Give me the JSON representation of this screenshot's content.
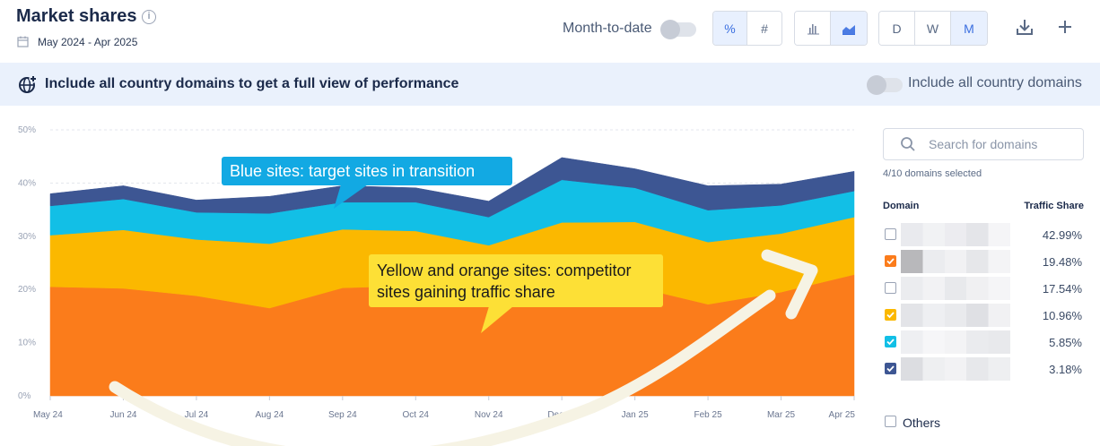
{
  "header": {
    "title": "Market shares",
    "date_range": "May 2024 - Apr 2025",
    "month_to_date_label": "Month-to-date",
    "unit_buttons": [
      "%",
      "#"
    ],
    "active_unit": "%",
    "chart_type_buttons": [
      "bar-chart-icon",
      "area-chart-icon"
    ],
    "active_chart_type": "area-chart-icon",
    "granularity_buttons": [
      "D",
      "W",
      "M"
    ],
    "active_granularity": "M"
  },
  "banner": {
    "text": "Include all country domains to get a full view of performance",
    "toggle_label": "Include all country domains"
  },
  "search": {
    "placeholder": "Search for domains"
  },
  "selection": {
    "count_text": "4/10 domains selected"
  },
  "table": {
    "headers": {
      "domain": "Domain",
      "share": "Traffic Share"
    },
    "rows": [
      {
        "checked": false,
        "color": "",
        "share": "42.99%"
      },
      {
        "checked": true,
        "color": "#fb7c1b",
        "share": "19.48%"
      },
      {
        "checked": false,
        "color": "",
        "share": "17.54%"
      },
      {
        "checked": true,
        "color": "#fbb800",
        "share": "10.96%"
      },
      {
        "checked": true,
        "color": "#12bfe6",
        "share": "5.85%"
      },
      {
        "checked": true,
        "color": "#3d5693",
        "share": "3.18%"
      }
    ],
    "others_label": "Others"
  },
  "annotations": {
    "blue": "Blue sites: target sites in transition",
    "yellow_line1": "Yellow and orange sites: competitor",
    "yellow_line2": "sites gaining traffic share"
  },
  "chart_data": {
    "type": "area",
    "stacked": true,
    "x": [
      "May 24",
      "Jun 24",
      "Jul 24",
      "Aug 24",
      "Sep 24",
      "Oct 24",
      "Nov 24",
      "Dec 24",
      "Jan 25",
      "Feb 25",
      "Mar 25",
      "Apr 25"
    ],
    "yticks": [
      "0%",
      "10%",
      "20%",
      "30%",
      "40%",
      "50%"
    ],
    "ylim": [
      0,
      50
    ],
    "series": [
      {
        "color": "#fb7c1b",
        "values": [
          20.5,
          20.2,
          18.8,
          16.5,
          20.3,
          20.7,
          19.8,
          20.2,
          20.5,
          17.2,
          19.5,
          22.8
        ]
      },
      {
        "color": "#fbb800",
        "values": [
          9.7,
          11.0,
          10.6,
          12.1,
          11.0,
          10.3,
          8.5,
          12.4,
          12.2,
          11.7,
          11.0,
          10.8
        ]
      },
      {
        "color": "#12bfe6",
        "values": [
          5.5,
          5.8,
          5.1,
          5.7,
          5.1,
          5.4,
          5.3,
          8.0,
          6.4,
          6.0,
          5.3,
          4.9
        ]
      },
      {
        "color": "#3d5693",
        "values": [
          2.3,
          2.5,
          2.3,
          3.2,
          3.1,
          2.7,
          3.0,
          4.2,
          3.6,
          4.6,
          4.0,
          3.7
        ]
      }
    ],
    "grid": true
  }
}
